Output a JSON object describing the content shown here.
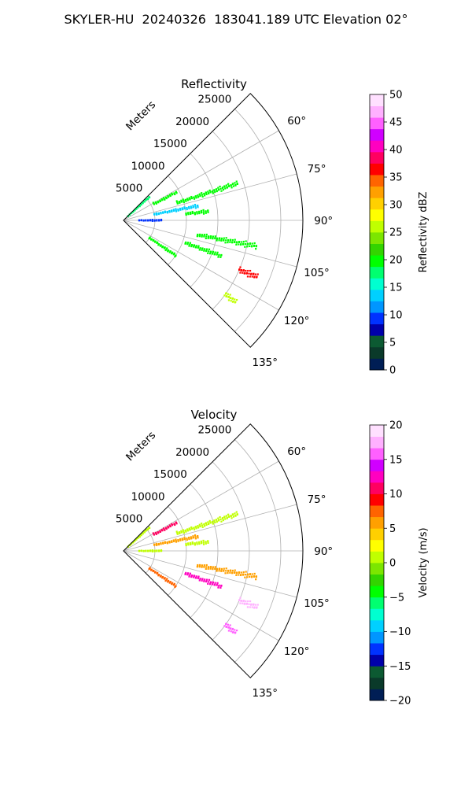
{
  "page_title": "SKYLER-HU  20240326  183041.189 UTC Elevation 02°",
  "chart_data": [
    {
      "type": "polar-sector",
      "title": "Reflectivity",
      "radial_label": "Meters",
      "radial_ticks": [
        "5000",
        "10000",
        "15000",
        "20000",
        "25000"
      ],
      "radial_tick_values": [
        5000,
        10000,
        15000,
        20000,
        25000
      ],
      "rmax": 28500,
      "theta_range": [
        45,
        135
      ],
      "angle_ticks": [
        "60°",
        "75°",
        "90°",
        "105°",
        "120°",
        "135°"
      ],
      "angle_tick_values": [
        60,
        75,
        90,
        105,
        120,
        135
      ],
      "grid": true,
      "colorbar": {
        "label": "Reflectivity dBZ",
        "range": [
          0,
          50
        ],
        "ticks": [
          "0",
          "5",
          "10",
          "15",
          "20",
          "25",
          "30",
          "35",
          "40",
          "45",
          "50"
        ],
        "colors": [
          "#001e55",
          "#0a3a2a",
          "#0c5a32",
          "#0000aa",
          "#0032ff",
          "#0096ff",
          "#00d0ff",
          "#00ffd0",
          "#00ff70",
          "#00ff00",
          "#33d400",
          "#7ce600",
          "#c0ff00",
          "#ffff00",
          "#ffd000",
          "#ffa000",
          "#ff6400",
          "#ff0000",
          "#ff0060",
          "#ff00c0",
          "#d000ff",
          "#ff60ff",
          "#ffb0ff",
          "#ffe0ff"
        ]
      },
      "features": [
        {
          "az": 48,
          "r0": 1000,
          "r1": 5500,
          "value": 17
        },
        {
          "az": 62,
          "r0": 5500,
          "r1": 9500,
          "value": 20
        },
        {
          "az": 72,
          "r0": 9000,
          "r1": 19000,
          "value": 20
        },
        {
          "az": 79,
          "r0": 5000,
          "r1": 12000,
          "value": 13
        },
        {
          "az": 84,
          "r0": 10000,
          "r1": 13500,
          "value": 20
        },
        {
          "az": 90,
          "r0": 2500,
          "r1": 6000,
          "value": 9
        },
        {
          "az": 101,
          "r0": 12000,
          "r1": 21500,
          "value": 20
        },
        {
          "az": 110,
          "r0": 10500,
          "r1": 16500,
          "value": 20
        },
        {
          "az": 124,
          "r0": 5000,
          "r1": 10000,
          "value": 20
        },
        {
          "az": 126,
          "r0": 20000,
          "r1": 22000,
          "value": 27
        },
        {
          "az": 113,
          "r0": 20000,
          "r1": 23000,
          "value": 36
        }
      ]
    },
    {
      "type": "polar-sector",
      "title": "Velocity",
      "radial_label": "Meters",
      "radial_ticks": [
        "5000",
        "10000",
        "15000",
        "20000",
        "25000"
      ],
      "radial_tick_values": [
        5000,
        10000,
        15000,
        20000,
        25000
      ],
      "rmax": 28500,
      "theta_range": [
        45,
        135
      ],
      "angle_ticks": [
        "60°",
        "75°",
        "90°",
        "105°",
        "120°",
        "135°"
      ],
      "angle_tick_values": [
        60,
        75,
        90,
        105,
        120,
        135
      ],
      "grid": true,
      "colorbar": {
        "label": "Velocity (m/s)",
        "range": [
          -20,
          20
        ],
        "ticks": [
          "−20",
          "−15",
          "−10",
          "−5",
          "0",
          "5",
          "10",
          "15",
          "20"
        ],
        "colors": [
          "#001e55",
          "#0a3a2a",
          "#0c5a32",
          "#0000aa",
          "#0032ff",
          "#0096ff",
          "#00d0ff",
          "#00ffd0",
          "#00ff70",
          "#00ff00",
          "#33d400",
          "#7ce600",
          "#c0ff00",
          "#ffff00",
          "#ffd000",
          "#ffa000",
          "#ff6400",
          "#ff0000",
          "#ff0060",
          "#ff00c0",
          "#d000ff",
          "#ff60ff",
          "#ffb0ff",
          "#ffe0ff"
        ]
      },
      "features": [
        {
          "az": 48,
          "r0": 1000,
          "r1": 5500,
          "value": 0
        },
        {
          "az": 62,
          "r0": 5500,
          "r1": 9500,
          "value": 11
        },
        {
          "az": 72,
          "r0": 9000,
          "r1": 19000,
          "value": 0
        },
        {
          "az": 79,
          "r0": 5000,
          "r1": 12000,
          "value": 5
        },
        {
          "az": 84,
          "r0": 10000,
          "r1": 13500,
          "value": 0
        },
        {
          "az": 90,
          "r0": 2500,
          "r1": 6000,
          "value": 0
        },
        {
          "az": 101,
          "r0": 12000,
          "r1": 21500,
          "value": 5
        },
        {
          "az": 110,
          "r0": 10500,
          "r1": 16500,
          "value": 12
        },
        {
          "az": 124,
          "r0": 5000,
          "r1": 10000,
          "value": 7
        },
        {
          "az": 126,
          "r0": 20000,
          "r1": 22000,
          "value": 15
        },
        {
          "az": 113,
          "r0": 20000,
          "r1": 23000,
          "value": 17
        }
      ]
    }
  ]
}
